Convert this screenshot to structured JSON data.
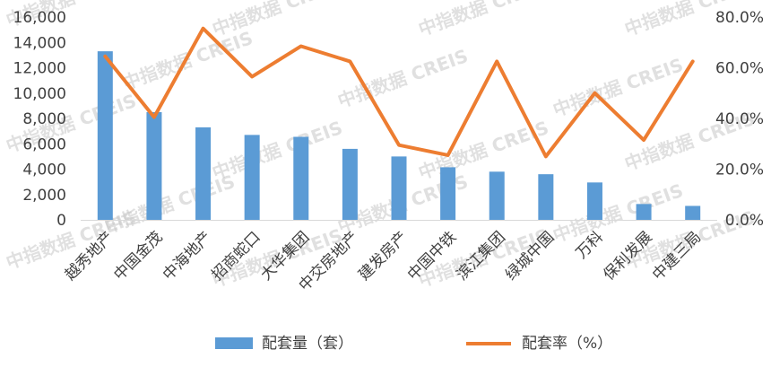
{
  "chart_data": {
    "type": "bar",
    "categories": [
      "越秀地产",
      "中国金茂",
      "中海地产",
      "招商蛇口",
      "大华集团",
      "中交房地产",
      "建发房产",
      "中国中铁",
      "滨江集团",
      "绿城中国",
      "万科",
      "保利发展",
      "中建三局"
    ],
    "series": [
      {
        "name": "配套量（套）",
        "type": "bar",
        "axis": "left",
        "color": "#5b9bd5",
        "values": [
          13300,
          8500,
          7300,
          6700,
          6550,
          5600,
          5000,
          4150,
          3800,
          3600,
          2950,
          1250,
          1100
        ]
      },
      {
        "name": "配套率（%）",
        "type": "line",
        "axis": "right",
        "color": "#ed7d31",
        "values": [
          64.5,
          40.5,
          75.5,
          56.5,
          68.5,
          62.5,
          29.5,
          25.5,
          62.5,
          25.0,
          50.0,
          31.5,
          62.5
        ]
      }
    ],
    "yleft": {
      "lim": [
        0,
        16000
      ],
      "ticks": [
        "0",
        "2,000",
        "4,000",
        "6,000",
        "8,000",
        "10,000",
        "12,000",
        "14,000",
        "16,000"
      ]
    },
    "yright": {
      "lim": [
        0,
        80
      ],
      "ticks": [
        "0.0%",
        "20.0%",
        "40.0%",
        "60.0%",
        "80.0%"
      ]
    },
    "legend_position": "bottom"
  },
  "watermark": "中指数据 CREIS"
}
